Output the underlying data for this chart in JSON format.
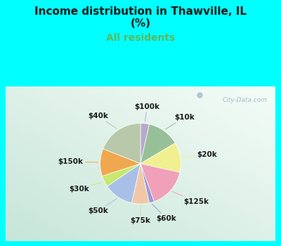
{
  "title_line1": "Income distribution in Thawville, IL",
  "title_line2": "(%)",
  "subtitle": "All residents",
  "title_color": "#1a1a1a",
  "subtitle_color": "#5cb85c",
  "bg_top": "#00ffff",
  "watermark": "City-Data.com",
  "labels": [
    "$100k",
    "$10k",
    "$20k",
    "$125k",
    "$60k",
    "$75k",
    "$50k",
    "$30k",
    "$150k",
    "$40k"
  ],
  "values": [
    3.5,
    13.0,
    12.0,
    16.0,
    2.0,
    7.0,
    12.0,
    4.5,
    11.0,
    19.0
  ],
  "colors": [
    "#b8a8d0",
    "#98c098",
    "#f0f090",
    "#f0a0b8",
    "#9898d8",
    "#f0c8a8",
    "#a8c0e8",
    "#c8e870",
    "#f0a850",
    "#b8c8a8"
  ],
  "label_fontsize": 7.5,
  "title_fontsize": 11,
  "subtitle_fontsize": 10
}
